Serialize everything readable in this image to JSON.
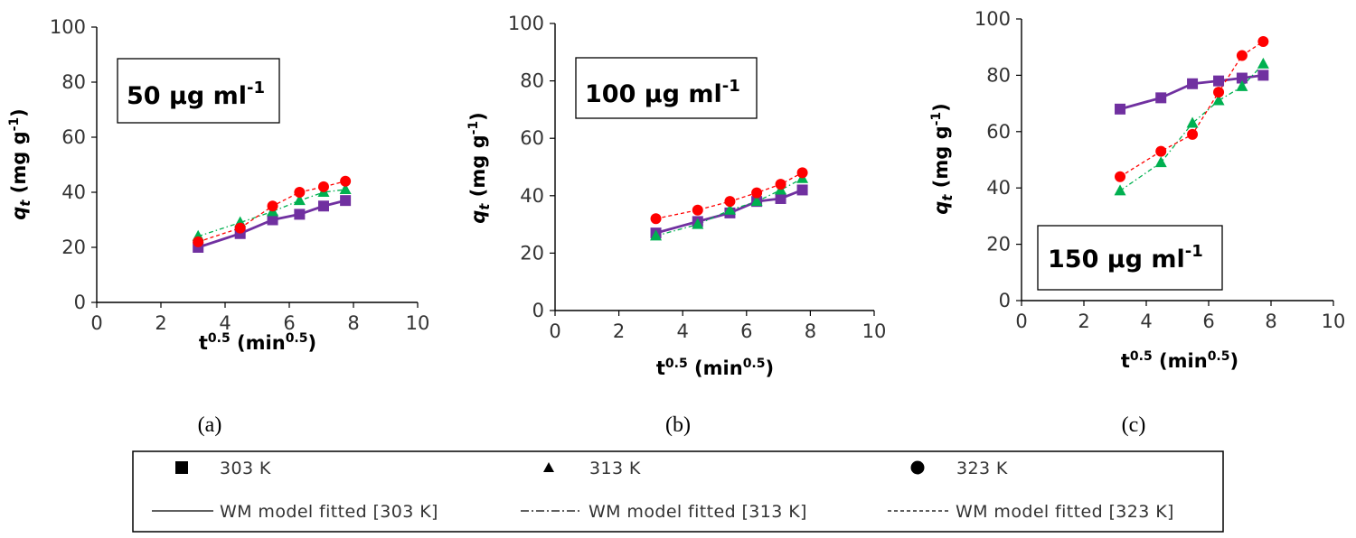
{
  "chart_data": [
    {
      "type": "line",
      "panel": "(a)",
      "annotation": "50 μg ml",
      "annotation_sup": "-1",
      "xlabel_base": "t",
      "xlabel_sup": "0.5",
      "xlabel_unit": "(min",
      "xlabel_unit_sup": "0.5",
      "xlabel_close": ")",
      "ylabel_main": "q",
      "ylabel_sub": "t",
      "ylabel_unit": "(mg g",
      "ylabel_unit_sup": "-1",
      "ylabel_close": ")",
      "xlim": [
        0,
        10
      ],
      "ylim": [
        0,
        100
      ],
      "xticks": [
        "0",
        "2",
        "4",
        "6",
        "8",
        "10"
      ],
      "yticks": [
        "0",
        "20",
        "40",
        "60",
        "80",
        "100"
      ],
      "x": [
        3.16,
        4.47,
        5.48,
        6.32,
        7.07,
        7.75
      ],
      "series": [
        {
          "name": "303 K",
          "values": [
            20,
            25,
            30,
            32,
            35,
            37
          ]
        },
        {
          "name": "313 K",
          "values": [
            24,
            29,
            33,
            37,
            40,
            41
          ]
        },
        {
          "name": "323 K",
          "values": [
            22,
            27,
            35,
            40,
            42,
            44
          ]
        }
      ]
    },
    {
      "type": "line",
      "panel": "(b)",
      "annotation": "100 μg ml",
      "annotation_sup": "-1",
      "xlabel_base": "t",
      "xlabel_sup": "0.5",
      "xlabel_unit": "(min",
      "xlabel_unit_sup": "0.5",
      "xlabel_close": ")",
      "ylabel_main": "q",
      "ylabel_sub": "t",
      "ylabel_unit": "(mg g",
      "ylabel_unit_sup": "-1",
      "ylabel_close": ")",
      "xlim": [
        0,
        10
      ],
      "ylim": [
        0,
        100
      ],
      "xticks": [
        "0",
        "2",
        "4",
        "6",
        "8",
        "10"
      ],
      "yticks": [
        "0",
        "20",
        "40",
        "60",
        "80",
        "100"
      ],
      "x": [
        3.16,
        4.47,
        5.48,
        6.32,
        7.07,
        7.75
      ],
      "series": [
        {
          "name": "303 K",
          "values": [
            27,
            31,
            34,
            38,
            39,
            42
          ]
        },
        {
          "name": "313 K",
          "values": [
            26,
            30,
            35,
            38,
            42,
            46
          ]
        },
        {
          "name": "323 K",
          "values": [
            32,
            35,
            38,
            41,
            44,
            48
          ]
        }
      ]
    },
    {
      "type": "line",
      "panel": "(c)",
      "annotation": "150 μg ml",
      "annotation_sup": "-1",
      "xlabel_base": "t",
      "xlabel_sup": "0.5",
      "xlabel_unit": "(min",
      "xlabel_unit_sup": "0.5",
      "xlabel_close": ")",
      "ylabel_main": "q",
      "ylabel_sub": "t",
      "ylabel_unit": "(mg g",
      "ylabel_unit_sup": "-1",
      "ylabel_close": ")",
      "xlim": [
        0,
        10
      ],
      "ylim": [
        0,
        100
      ],
      "xticks": [
        "0",
        "2",
        "4",
        "6",
        "8",
        "10"
      ],
      "yticks": [
        "0",
        "20",
        "40",
        "60",
        "80",
        "100"
      ],
      "x": [
        3.16,
        4.47,
        5.48,
        6.32,
        7.07,
        7.75
      ],
      "series": [
        {
          "name": "303 K",
          "values": [
            68,
            72,
            77,
            78,
            79,
            80
          ]
        },
        {
          "name": "313 K",
          "values": [
            39,
            49,
            63,
            71,
            76,
            84
          ]
        },
        {
          "name": "323 K",
          "values": [
            44,
            53,
            59,
            74,
            87,
            92
          ]
        }
      ]
    }
  ],
  "legend": {
    "markers": [
      {
        "symbol": "square",
        "label": "303 K"
      },
      {
        "symbol": "triangle",
        "label": "313 K"
      },
      {
        "symbol": "circle",
        "label": "323 K"
      }
    ],
    "lines": [
      {
        "style": "solid",
        "label": "WM model fitted [303 K]"
      },
      {
        "style": "dashdot",
        "label": "WM model fitted [313 K]"
      },
      {
        "style": "dashed",
        "label": "WM model fitted [323 K]"
      }
    ]
  },
  "colors": {
    "303": "#7030a0",
    "313": "#00b050",
    "323": "#ff0000",
    "axis": "#000000"
  }
}
